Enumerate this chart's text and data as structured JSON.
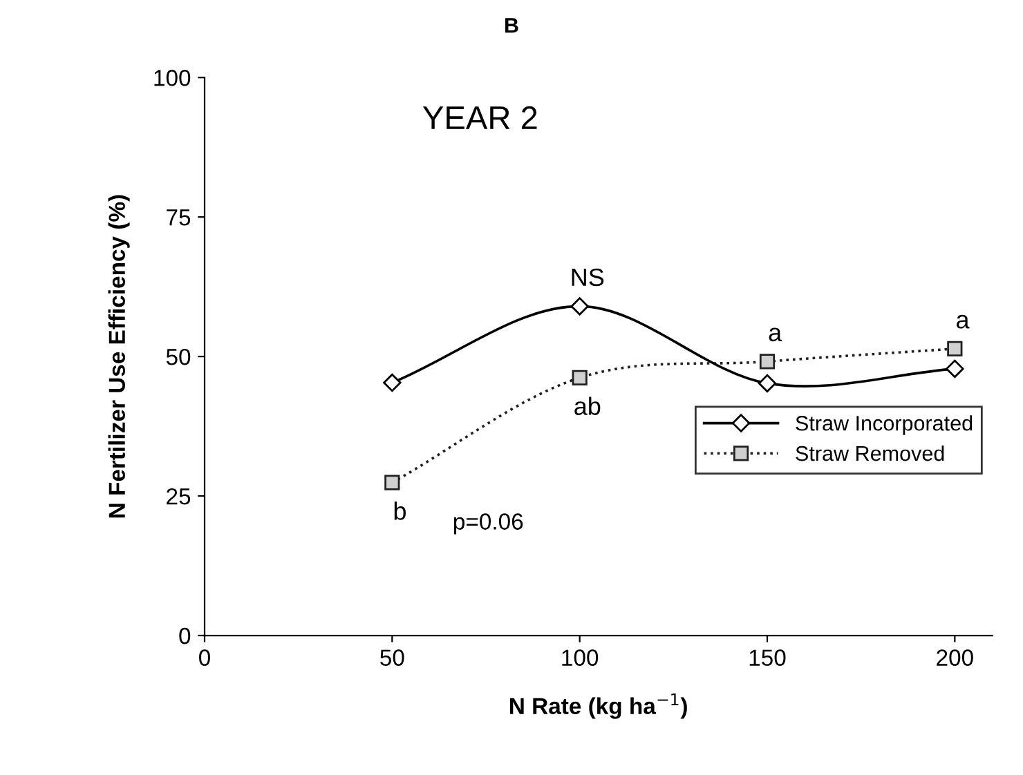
{
  "chart_data": {
    "type": "line",
    "title": "B",
    "subtitle": "YEAR 2",
    "xlabel": "N Rate (kg ha$^{−1}$)",
    "ylabel": "N Fertilizer Use Efficiency (%)",
    "x": [
      50,
      100,
      150,
      200
    ],
    "series": [
      {
        "name": "Straw Incorporated",
        "color": "#000000",
        "values": [
          45.3,
          59.0,
          45.2,
          47.8
        ],
        "marker": "diamond",
        "line_style": "solid"
      },
      {
        "name": "Straw Removed",
        "color": "#202020",
        "values": [
          27.4,
          46.2,
          49.1,
          51.4
        ],
        "marker": "square",
        "line_style": "dotted"
      }
    ],
    "xlim": [
      0,
      210
    ],
    "xticks": [
      0,
      50,
      100,
      150,
      200
    ],
    "ylim": [
      0,
      100
    ],
    "yticks": [
      0,
      25,
      50,
      75,
      100
    ],
    "grid": false,
    "legend": "right",
    "annotations": [
      {
        "text": "NS",
        "x": 100,
        "y": 59.0
      },
      {
        "text": "ab",
        "x": 100,
        "y": 46.2
      },
      {
        "text": "b",
        "x": 50,
        "y": 27.4
      },
      {
        "text": "a",
        "x": 150,
        "y": 49.1
      },
      {
        "text": "a",
        "x": 200,
        "y": 51.4
      },
      "p=0.06"
    ]
  }
}
